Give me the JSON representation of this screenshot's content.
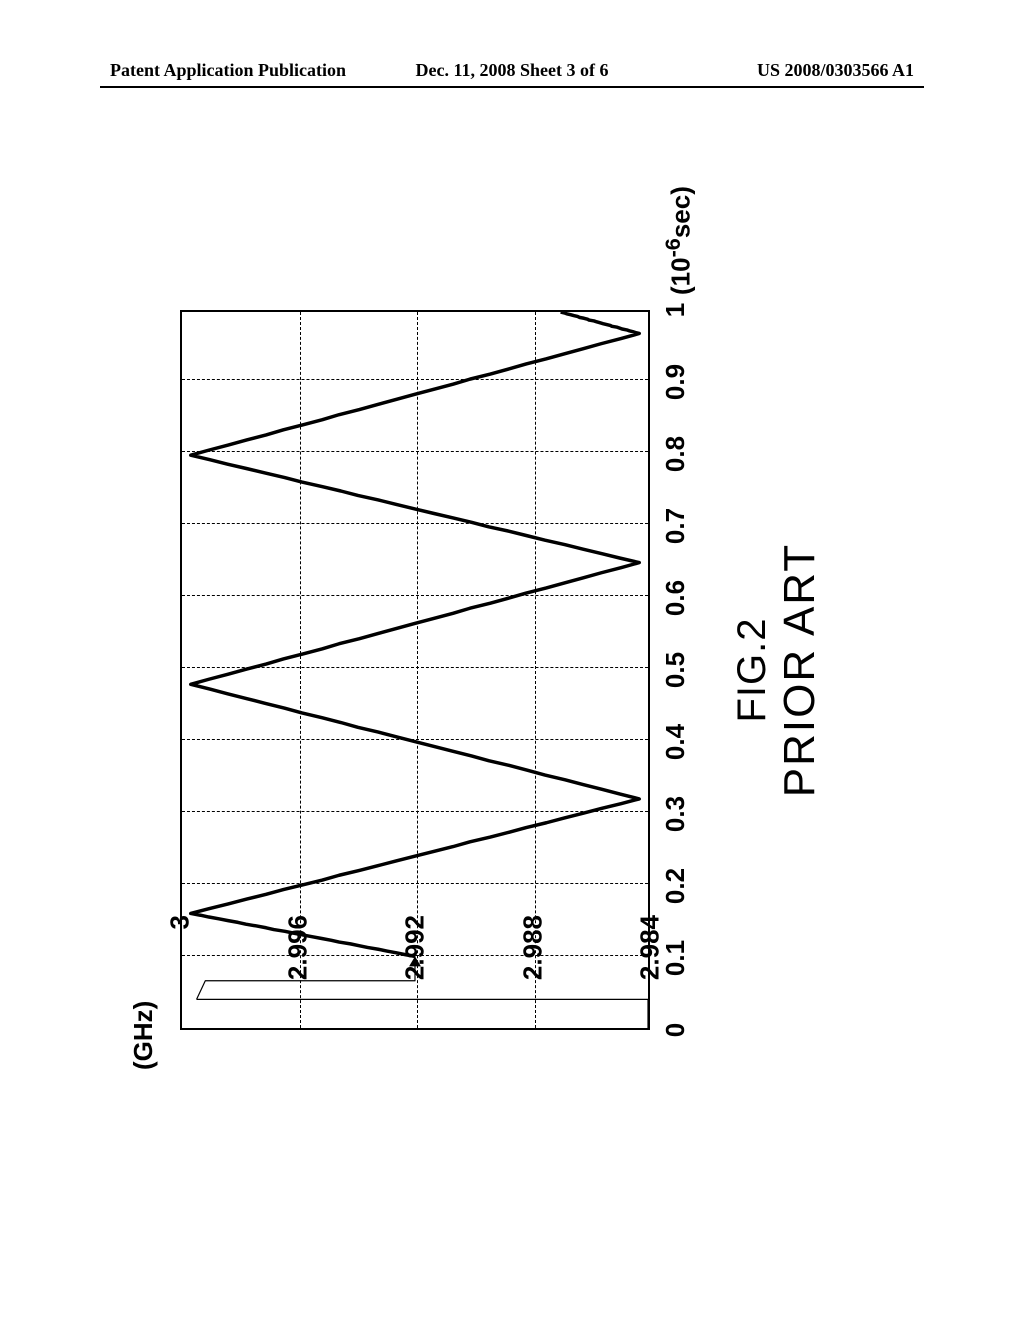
{
  "header": {
    "left": "Patent Application Publication",
    "center": "Dec. 11, 2008  Sheet 3 of 6",
    "right": "US 2008/0303566 A1"
  },
  "caption": {
    "fig": "FIG.2",
    "prior": "PRIOR ART"
  },
  "chart": {
    "type": "line",
    "ylabel": "(GHz)",
    "xlabel_html": "(10<sup>-6</sup>sec)",
    "xlim": [
      0,
      1.0
    ],
    "ylim": [
      2.984,
      3.0
    ],
    "xticks": [
      0,
      0.1,
      0.2,
      0.3,
      0.4,
      0.5,
      0.6,
      0.7,
      0.8,
      0.9,
      1.0
    ],
    "yticks": [
      2.984,
      2.988,
      2.992,
      2.996,
      3.0
    ],
    "ytick_labels": [
      "2.984",
      "2.988",
      "2.992",
      "2.996",
      "3"
    ],
    "grid_color": "#000000",
    "line_color": "#000000",
    "line_width_main": 3.5,
    "line_width_thin": 1.2,
    "background_color": "#ffffff",
    "series": {
      "thin1": [
        {
          "x": 0.0,
          "y": 2.984
        },
        {
          "x": 0.04,
          "y": 2.984
        },
        {
          "x": 0.04,
          "y": 2.9995
        }
      ],
      "thin2": [
        {
          "x": 0.04,
          "y": 2.9995
        },
        {
          "x": 0.066,
          "y": 2.9992
        },
        {
          "x": 0.066,
          "y": 2.992
        },
        {
          "x": 0.1,
          "y": 2.992
        }
      ],
      "arrowhead": {
        "x": 0.1,
        "y": 2.992
      },
      "main": [
        {
          "x": 0.1,
          "y": 2.992
        },
        {
          "x": 0.16,
          "y": 2.9997
        },
        {
          "x": 0.32,
          "y": 2.9843
        },
        {
          "x": 0.48,
          "y": 2.9997
        },
        {
          "x": 0.65,
          "y": 2.9843
        },
        {
          "x": 0.8,
          "y": 2.9997
        },
        {
          "x": 0.97,
          "y": 2.9843
        },
        {
          "x": 1.0,
          "y": 2.987
        }
      ]
    }
  }
}
